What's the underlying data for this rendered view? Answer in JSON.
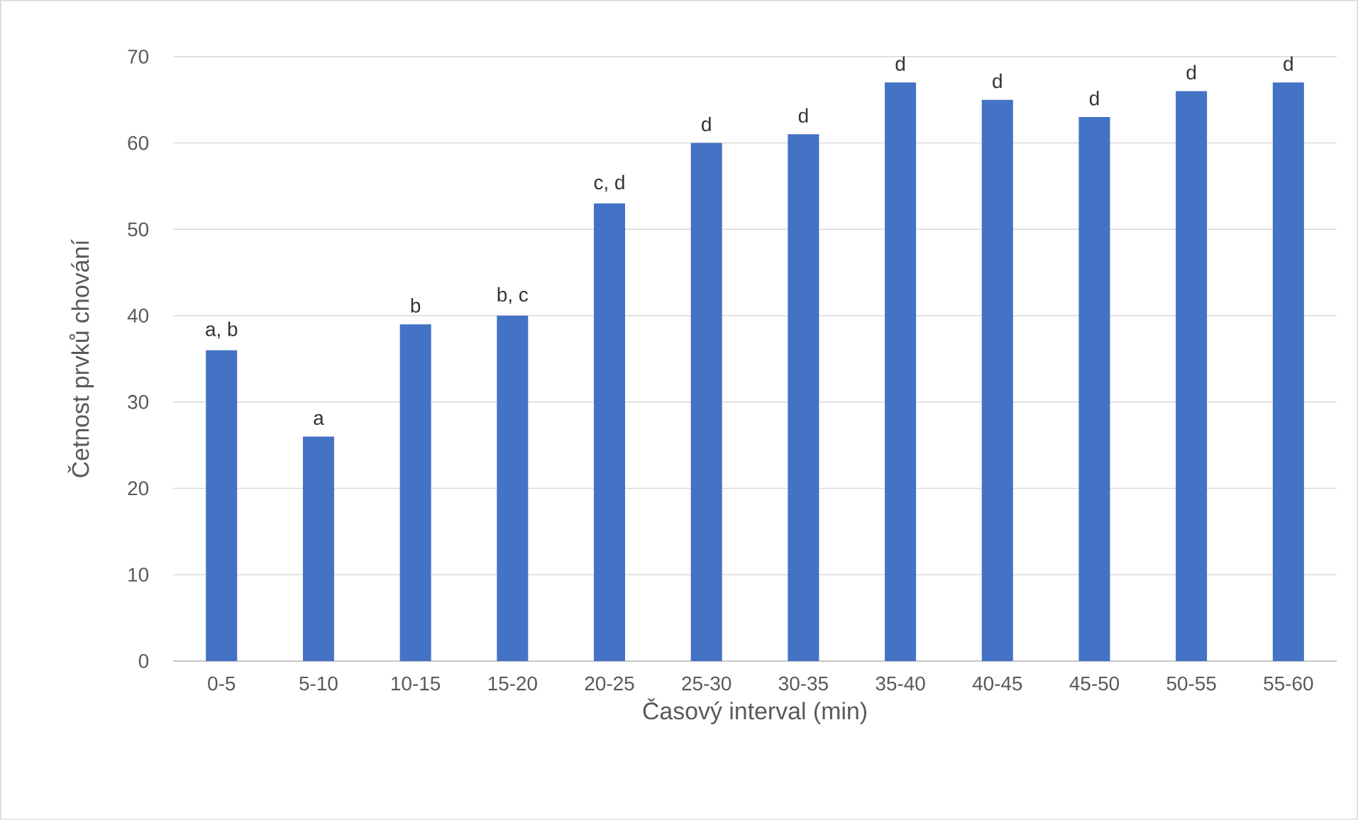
{
  "chart_data": {
    "type": "bar",
    "xlabel": "Časový interval (min)",
    "ylabel": "Četnost prvků chování",
    "categories": [
      "0-5",
      "5-10",
      "10-15",
      "15-20",
      "20-25",
      "25-30",
      "30-35",
      "35-40",
      "40-45",
      "45-50",
      "50-55",
      "55-60"
    ],
    "values": [
      36,
      26,
      39,
      40,
      53,
      60,
      61,
      67,
      65,
      63,
      66,
      67
    ],
    "color": "#4472c4",
    "ylim": [
      0,
      70
    ],
    "yticks": [
      0,
      10,
      20,
      30,
      40,
      50,
      60,
      70
    ],
    "grid": "y",
    "annotations": [
      {
        "text": "a, b",
        "x": "0-5",
        "y": 36
      },
      {
        "text": "a",
        "x": "5-10",
        "y": 26
      },
      {
        "text": "b",
        "x": "10-15",
        "y": 39
      },
      {
        "text": "b, c",
        "x": "15-20",
        "y": 40
      },
      {
        "text": "c, d",
        "x": "20-25",
        "y": 53
      },
      {
        "text": "d",
        "x": "25-30",
        "y": 60
      },
      {
        "text": "d",
        "x": "30-35",
        "y": 61
      },
      {
        "text": "d",
        "x": "35-40",
        "y": 67
      },
      {
        "text": "d",
        "x": "40-45",
        "y": 65
      },
      {
        "text": "d",
        "x": "45-50",
        "y": 63
      },
      {
        "text": "d",
        "x": "50-55",
        "y": 66
      },
      {
        "text": "d",
        "x": "55-60",
        "y": 67
      }
    ]
  }
}
